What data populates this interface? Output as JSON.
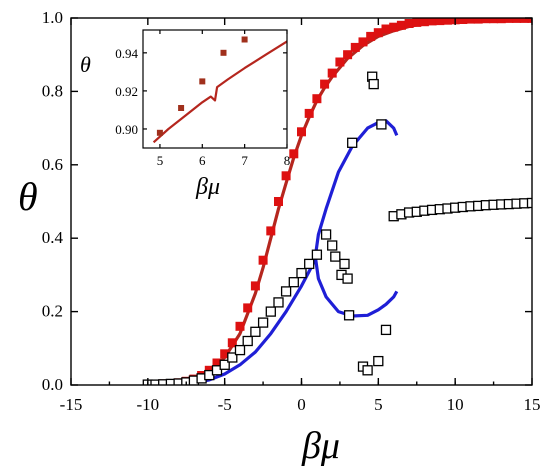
{
  "chart_data": [
    {
      "type": "scatter",
      "xlabel": "βμ",
      "ylabel": "θ",
      "xlim": [
        -15,
        15
      ],
      "ylim": [
        0,
        1
      ],
      "xticks": [
        "-15",
        "-10",
        "-5",
        "0",
        "5",
        "10",
        "15"
      ],
      "yticks": [
        "0.0",
        "0.2",
        "0.4",
        "0.6",
        "0.8",
        "1.0"
      ],
      "grid": false,
      "legend": "none",
      "series": [
        {
          "kind": "markers",
          "marker": "filled-square",
          "color": "#dd1111",
          "x": [
            -10.0,
            -9.5,
            -9.0,
            -8.5,
            -8.0,
            -7.5,
            -7.0,
            -6.5,
            -6.0,
            -5.5,
            -5.0,
            -4.5,
            -4.0,
            -3.5,
            -3.0,
            -2.5,
            -2.0,
            -1.5,
            -1.0,
            -0.5,
            0.0,
            0.5,
            1.0,
            1.5,
            2.0,
            2.5,
            3.0,
            3.5,
            4.0,
            4.5,
            5.0,
            5.5,
            6.0,
            6.5,
            7.0,
            7.5,
            8.0,
            8.5,
            9.0,
            9.5,
            10.0,
            10.5,
            11.0,
            11.5,
            12.0,
            12.5,
            13.0,
            13.5,
            14.0,
            14.5,
            15.0
          ],
          "y": [
            0.002,
            0.002,
            0.003,
            0.004,
            0.006,
            0.01,
            0.016,
            0.026,
            0.04,
            0.06,
            0.085,
            0.115,
            0.16,
            0.21,
            0.27,
            0.34,
            0.42,
            0.5,
            0.57,
            0.63,
            0.69,
            0.74,
            0.78,
            0.82,
            0.85,
            0.88,
            0.9,
            0.92,
            0.935,
            0.95,
            0.96,
            0.97,
            0.975,
            0.98,
            0.985,
            0.988,
            0.99,
            0.992,
            0.993,
            0.994,
            0.995,
            0.996,
            0.997,
            0.997,
            0.998,
            0.998,
            0.998,
            0.999,
            0.999,
            0.999,
            0.999
          ]
        },
        {
          "kind": "line",
          "color": "#b5261e",
          "x": [
            -10,
            -9,
            -8,
            -7,
            -6,
            -5,
            -4,
            -3,
            -2.5,
            -2,
            -1.5,
            -1,
            -0.5,
            0,
            0.5,
            1,
            1.5,
            2,
            3,
            4,
            5,
            6,
            7,
            8,
            9,
            10,
            11,
            12,
            13,
            14,
            15
          ],
          "y": [
            0.002,
            0.003,
            0.006,
            0.014,
            0.035,
            0.075,
            0.14,
            0.25,
            0.32,
            0.4,
            0.48,
            0.55,
            0.62,
            0.68,
            0.73,
            0.775,
            0.81,
            0.84,
            0.89,
            0.925,
            0.95,
            0.965,
            0.977,
            0.985,
            0.99,
            0.993,
            0.995,
            0.997,
            0.998,
            0.999,
            0.999
          ]
        },
        {
          "kind": "markers",
          "marker": "open-square",
          "color": "#000000",
          "x": [
            -10.0,
            -9.5,
            -9.0,
            -8.5,
            -8.0,
            -7.5,
            -7.0,
            -6.5,
            -6.0,
            -5.5,
            -5.0,
            -4.5,
            -4.0,
            -3.5,
            -3.0,
            -2.5,
            -2.0,
            -1.5,
            -1.0,
            -0.5,
            0.0,
            0.5,
            1.0,
            1.6,
            2.0,
            2.2,
            2.6,
            2.8,
            3.0,
            3.1,
            3.3,
            4.0,
            4.3,
            4.6,
            4.7,
            5.0,
            5.2,
            5.5,
            6.0,
            6.5,
            7.0,
            7.5,
            8.0,
            8.5,
            9.0,
            9.5,
            10.0,
            10.5,
            11.0,
            11.5,
            12.0,
            12.5,
            13.0,
            13.5,
            14.0,
            14.5,
            15.0
          ],
          "y": [
            0.001,
            0.001,
            0.002,
            0.003,
            0.004,
            0.007,
            0.012,
            0.018,
            0.027,
            0.04,
            0.055,
            0.075,
            0.095,
            0.12,
            0.145,
            0.17,
            0.2,
            0.225,
            0.255,
            0.28,
            0.305,
            0.33,
            0.355,
            0.41,
            0.38,
            0.35,
            0.3,
            0.33,
            0.29,
            0.19,
            0.66,
            0.05,
            0.04,
            0.84,
            0.82,
            0.065,
            0.71,
            0.15,
            0.46,
            0.465,
            0.47,
            0.472,
            0.475,
            0.477,
            0.479,
            0.481,
            0.483,
            0.485,
            0.487,
            0.488,
            0.49,
            0.491,
            0.492,
            0.493,
            0.494,
            0.495,
            0.496
          ]
        },
        {
          "kind": "line",
          "color": "#1f1fd6",
          "x": [
            -8,
            -7,
            -6,
            -5,
            -4,
            -3,
            -2,
            -1,
            0,
            0.5,
            1.0
          ],
          "y": [
            0.002,
            0.006,
            0.014,
            0.03,
            0.055,
            0.09,
            0.14,
            0.2,
            0.27,
            0.31,
            0.35
          ]
        },
        {
          "kind": "line",
          "color": "#1f1fd6",
          "x": [
            6.2,
            6.0,
            5.5,
            5.0,
            4.3,
            3.3,
            2.4,
            1.6,
            1.1,
            0.9,
            1.1,
            1.6,
            2.4,
            3.3,
            4.3,
            5.0,
            5.5,
            6.0,
            6.2
          ],
          "y": [
            0.68,
            0.7,
            0.72,
            0.715,
            0.7,
            0.65,
            0.58,
            0.48,
            0.41,
            0.35,
            0.29,
            0.24,
            0.2,
            0.188,
            0.19,
            0.205,
            0.22,
            0.24,
            0.255
          ]
        },
        {
          "kind": "line",
          "color": "#1f1fd6",
          "x": [
            5.9,
            7,
            8,
            9,
            10,
            11,
            12,
            13,
            14,
            15
          ],
          "y": [
            0.462,
            0.471,
            0.476,
            0.48,
            0.484,
            0.487,
            0.49,
            0.492,
            0.494,
            0.496
          ]
        }
      ]
    },
    {
      "type": "scatter",
      "xlabel": "βμ",
      "ylabel": "θ",
      "xlim": [
        4.6,
        8
      ],
      "ylim": [
        0.89,
        0.952
      ],
      "xticks": [
        "5",
        "6",
        "7",
        "8"
      ],
      "yticks": [
        "0.90",
        "0.92",
        "0.94"
      ],
      "series": [
        {
          "kind": "markers",
          "marker": "filled-square",
          "color": "#a0301c",
          "x": [
            5.0,
            5.5,
            6.0,
            6.5,
            7.0
          ],
          "y": [
            0.898,
            0.911,
            0.925,
            0.94,
            0.947
          ]
        },
        {
          "kind": "line",
          "color": "#b5261e",
          "x": [
            4.85,
            5.2,
            5.6,
            6.0,
            6.2,
            6.3,
            6.35,
            6.6,
            7.0,
            7.5,
            8.0
          ],
          "y": [
            0.893,
            0.9,
            0.907,
            0.914,
            0.917,
            0.915,
            0.922,
            0.926,
            0.932,
            0.939,
            0.946
          ]
        }
      ]
    }
  ]
}
